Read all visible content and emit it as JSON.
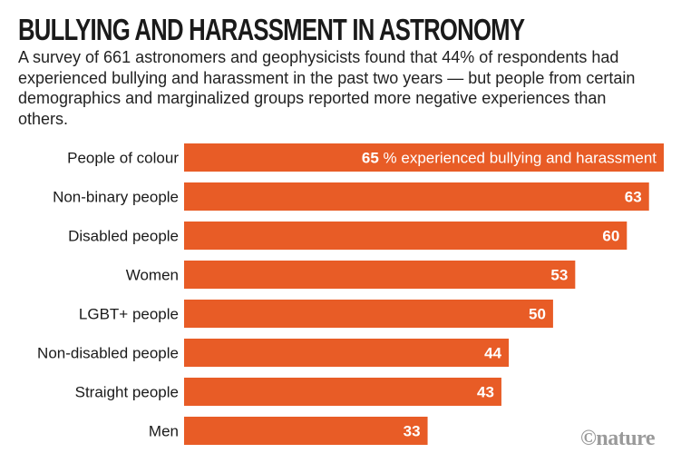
{
  "chart_data": {
    "type": "bar",
    "orientation": "horizontal",
    "title": "BULLYING AND HARASSMENT IN ASTRONOMY",
    "subtitle": "A survey of 661 astronomers and geophysicists found that 44% of respondents had experienced bullying and harassment in the past two years — but people from certain demographics and marginalized groups reported more negative experiences than others.",
    "categories": [
      "People of colour",
      "Non-binary people",
      "Disabled people",
      "Women",
      "LGBT+ people",
      "Non-disabled people",
      "Straight people",
      "Men"
    ],
    "values": [
      65,
      63,
      60,
      53,
      50,
      44,
      43,
      33
    ],
    "first_label_suffix": "% experienced bullying and harassment",
    "unit": "%",
    "xlim": [
      0,
      65
    ],
    "grid": false,
    "bar_color": "#e85c26",
    "credit": "©nature"
  }
}
